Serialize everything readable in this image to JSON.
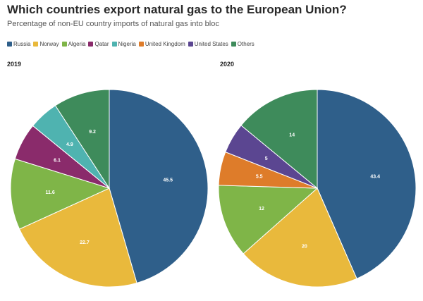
{
  "title": "Which countries export natural gas to the European Union?",
  "subtitle": "Percentage of non-EU country imports of natural gas into bloc",
  "legend": [
    {
      "name": "Russia",
      "color": "#2f5f8a"
    },
    {
      "name": "Norway",
      "color": "#e9b93c"
    },
    {
      "name": "Algeria",
      "color": "#7fb548"
    },
    {
      "name": "Qatar",
      "color": "#8a2b6b"
    },
    {
      "name": "Nigeria",
      "color": "#4fb3b0"
    },
    {
      "name": "United Kingdom",
      "color": "#de7c2a"
    },
    {
      "name": "United States",
      "color": "#5b4691"
    },
    {
      "name": "Others",
      "color": "#3e8b5b"
    }
  ],
  "chart_data": [
    {
      "type": "pie",
      "title": "2019",
      "slices": [
        {
          "name": "Russia",
          "value": 45.5,
          "label": "45.5",
          "color": "#2f5f8a"
        },
        {
          "name": "Norway",
          "value": 22.7,
          "label": "22.7",
          "color": "#e9b93c"
        },
        {
          "name": "Algeria",
          "value": 11.6,
          "label": "11.6",
          "color": "#7fb548"
        },
        {
          "name": "Qatar",
          "value": 6.1,
          "label": "6.1",
          "color": "#8a2b6b"
        },
        {
          "name": "Nigeria",
          "value": 4.9,
          "label": "4.9",
          "color": "#4fb3b0"
        },
        {
          "name": "Others",
          "value": 9.2,
          "label": "9.2",
          "color": "#3e8b5b"
        }
      ]
    },
    {
      "type": "pie",
      "title": "2020",
      "slices": [
        {
          "name": "Russia",
          "value": 43.4,
          "label": "43.4",
          "color": "#2f5f8a"
        },
        {
          "name": "Norway",
          "value": 20,
          "label": "20",
          "color": "#e9b93c"
        },
        {
          "name": "Algeria",
          "value": 12,
          "label": "12",
          "color": "#7fb548"
        },
        {
          "name": "United Kingdom",
          "value": 5.5,
          "label": "5.5",
          "color": "#de7c2a"
        },
        {
          "name": "United States",
          "value": 5,
          "label": "5",
          "color": "#5b4691"
        },
        {
          "name": "Others",
          "value": 14,
          "label": "14",
          "color": "#3e8b5b"
        }
      ]
    }
  ]
}
